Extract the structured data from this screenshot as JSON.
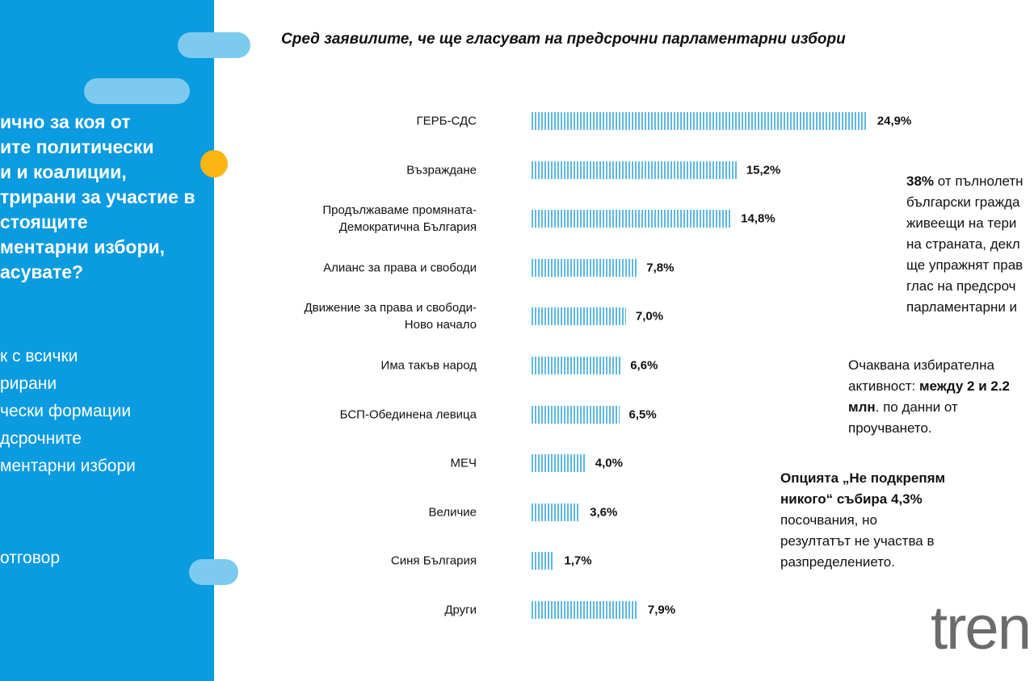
{
  "chart_data": {
    "type": "bar",
    "orientation": "horizontal",
    "title": "Сред заявилите, че ще гласуват на предсрочни парламентарни избори",
    "categories": [
      "ГЕРБ-СДС",
      "Възраждане",
      "Продължаваме промяната-\nДемократична България",
      "Алианс за права и свободи",
      "Движение за права и свободи-\nНово начало",
      "Има такъв народ",
      "БСП-Обединена левица",
      "МЕЧ",
      "Величие",
      "Синя България",
      "Други"
    ],
    "values": [
      24.9,
      15.2,
      14.8,
      7.8,
      7.0,
      6.6,
      6.5,
      4.0,
      3.6,
      1.7,
      7.9
    ],
    "value_labels": [
      "24,9%",
      "15,2%",
      "14,8%",
      "7,8%",
      "7,0%",
      "6,6%",
      "6,5%",
      "4,0%",
      "3,6%",
      "1,7%",
      "7,9%"
    ],
    "color": "#5db8e3"
  },
  "sidebar": {
    "question": [
      "ично за коя от",
      "ите политически",
      "и и коалиции,",
      "трирани за участие в",
      "стоящите",
      "ментарни избори,",
      "асувате?"
    ],
    "list": [
      "к с всички",
      "рирани",
      "чески формации",
      "дсрочните",
      "ментарни избори"
    ],
    "answer": "отговор"
  },
  "notes": [
    {
      "lines": [
        [
          {
            "b": "38%"
          },
          {
            "t": " от пълнолетн"
          }
        ],
        [
          {
            "t": "български гражда"
          }
        ],
        [
          {
            "t": "живеещи на тери"
          }
        ],
        [
          {
            "t": "на страната, декл"
          }
        ],
        [
          {
            "t": "ще упражнят прав"
          }
        ],
        [
          {
            "t": "глас на предсроч"
          }
        ],
        [
          {
            "t": "парламентарни и"
          }
        ]
      ]
    },
    {
      "lines": [
        [
          {
            "t": "Очаквана избирателна"
          }
        ],
        [
          {
            "t": "активност: "
          },
          {
            "b": "между 2 и 2.2"
          }
        ],
        [
          {
            "b": "млн"
          },
          {
            "t": ". по данни от"
          }
        ],
        [
          {
            "t": "проучването."
          }
        ]
      ]
    },
    {
      "lines": [
        [
          {
            "b": "Опцията „Не подкрепям"
          }
        ],
        [
          {
            "b": "никого“ събира 4,3%"
          }
        ],
        [
          {
            "t": "посочвания, но"
          }
        ],
        [
          {
            "t": "резултатът не участва в"
          }
        ],
        [
          {
            "t": "разпределението."
          }
        ]
      ]
    }
  ],
  "logo": "tren"
}
